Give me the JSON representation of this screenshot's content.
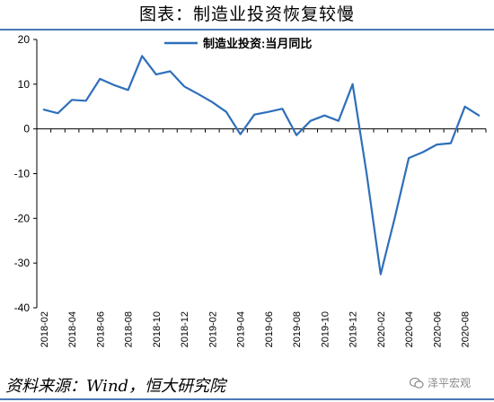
{
  "header": {
    "title": "图表：制造业投资恢复较慢"
  },
  "footer": {
    "source": "资料来源：Wind，恒大研究院",
    "watermark": "泽平宏观"
  },
  "colors": {
    "series": "#2e6fba",
    "rule": "#4a78b6",
    "axis": "#000000"
  },
  "chart_data": {
    "type": "line",
    "title": "",
    "xlabel": "",
    "ylabel": "",
    "ylim": [
      -40,
      20
    ],
    "yticks": [
      20,
      10,
      0,
      -10,
      -20,
      -30,
      -40
    ],
    "xtick_labels": [
      "2018-02",
      "2018-04",
      "2018-06",
      "2018-08",
      "2018-10",
      "2018-12",
      "2019-02",
      "2019-04",
      "2019-06",
      "2019-08",
      "2019-10",
      "2019-12",
      "2020-02",
      "2020-04",
      "2020-06",
      "2020-08"
    ],
    "legend_position": "top-center",
    "grid": false,
    "x": [
      "2018-02",
      "2018-03",
      "2018-04",
      "2018-05",
      "2018-06",
      "2018-07",
      "2018-08",
      "2018-09",
      "2018-10",
      "2018-11",
      "2018-12",
      "2019-01",
      "2019-02",
      "2019-03",
      "2019-04",
      "2019-05",
      "2019-06",
      "2019-07",
      "2019-08",
      "2019-09",
      "2019-10",
      "2019-11",
      "2019-12",
      "2020-01",
      "2020-02",
      "2020-03",
      "2020-04",
      "2020-05",
      "2020-06",
      "2020-07",
      "2020-08",
      "2020-09"
    ],
    "series": [
      {
        "name": "制造业投资:当月同比",
        "values": [
          4.3,
          3.5,
          6.5,
          6.3,
          11.2,
          9.8,
          8.7,
          16.3,
          12.2,
          12.9,
          9.5,
          7.8,
          6.0,
          3.8,
          -1.2,
          3.2,
          3.8,
          4.5,
          -1.4,
          1.8,
          3.0,
          1.8,
          10.0,
          -10.0,
          -32.5,
          -20.0,
          -6.5,
          -5.2,
          -3.5,
          -3.2,
          5.0,
          3.0
        ]
      }
    ]
  }
}
